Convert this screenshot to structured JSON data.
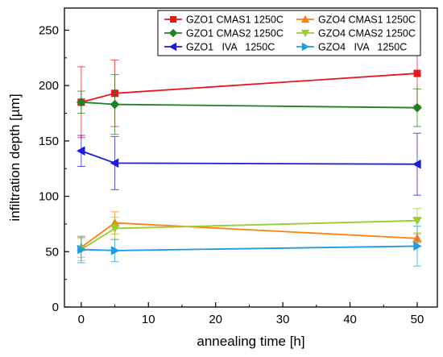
{
  "chart_data": {
    "type": "scatter",
    "xlabel": "annealing time [h]",
    "ylabel": "infiltration depth [µm]",
    "xlim": [
      -2.5,
      53
    ],
    "ylim": [
      0,
      270
    ],
    "x_ticks": [
      0,
      10,
      20,
      30,
      40,
      50
    ],
    "y_ticks": [
      0,
      50,
      100,
      150,
      200,
      250
    ],
    "grid": false,
    "legend_placement": "top-right",
    "series": [
      {
        "name": "GZO1 CMAS1 1250C",
        "color": "#e8161c",
        "marker": "square",
        "x": [
          0,
          5,
          50
        ],
        "y": [
          185,
          193,
          211
        ],
        "err": [
          32,
          30,
          29
        ]
      },
      {
        "name": "GZO1 CMAS2 1250C",
        "color": "#218021",
        "marker": "diamond",
        "x": [
          0,
          5,
          50
        ],
        "y": [
          185,
          183,
          180
        ],
        "err": [
          10,
          27,
          17
        ]
      },
      {
        "name": "GZO1   IVA   1250C",
        "color": "#1c1cd6",
        "marker": "triangle-left",
        "x": [
          0,
          5,
          50
        ],
        "y": [
          141,
          130,
          129
        ],
        "err": [
          14,
          24,
          28
        ]
      },
      {
        "name": "GZO4 CMAS1 1250C",
        "color": "#ff7f0e",
        "marker": "triangle-up",
        "x": [
          0,
          5,
          50
        ],
        "y": [
          54,
          76,
          62
        ],
        "err": [
          9,
          10,
          4
        ]
      },
      {
        "name": "GZO4 CMAS2 1250C",
        "color": "#9acd32",
        "marker": "triangle-down",
        "x": [
          0,
          5,
          50
        ],
        "y": [
          52,
          71,
          78
        ],
        "err": [
          10,
          10,
          11
        ]
      },
      {
        "name": "GZO4   IVA   1250C",
        "color": "#1e9be3",
        "marker": "triangle-right",
        "x": [
          0,
          5,
          50
        ],
        "y": [
          52,
          51,
          55
        ],
        "err": [
          12,
          10,
          18
        ]
      }
    ]
  }
}
